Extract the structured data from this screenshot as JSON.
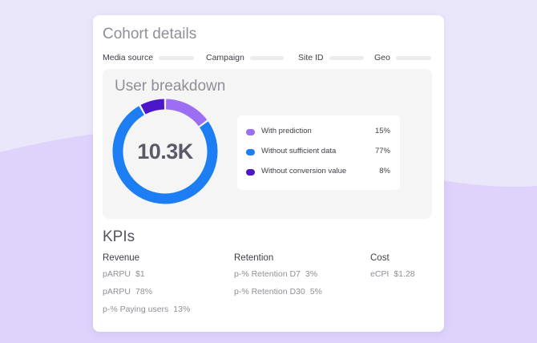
{
  "colors": {
    "prediction": "#9b6ef3",
    "insufficient": "#1c7ef2",
    "conversion": "#4c16c9",
    "wave": "#ddd3fb"
  },
  "card": {
    "title": "Cohort details",
    "filters": [
      {
        "label": "Media source"
      },
      {
        "label": "Campaign"
      },
      {
        "label": "Site ID"
      },
      {
        "label": "Geo"
      }
    ]
  },
  "breakdown": {
    "title": "User breakdown",
    "total": "10.3K",
    "items": [
      {
        "label": "With prediction",
        "value": "15%",
        "fraction": 0.15,
        "color": "#9b6ef3"
      },
      {
        "label": "Without sufficient data",
        "value": "77%",
        "fraction": 0.77,
        "color": "#1c7ef2"
      },
      {
        "label": "Without conversion value",
        "value": "8%",
        "fraction": 0.08,
        "color": "#4c16c9"
      }
    ]
  },
  "kpis": {
    "title": "KPIs",
    "columns": [
      {
        "heading": "Revenue",
        "items": [
          {
            "label": "pARPU",
            "value": "$1"
          },
          {
            "label": "pARPU",
            "value": "78%"
          },
          {
            "label": "p-% Paying users",
            "value": "13%"
          }
        ]
      },
      {
        "heading": "Retention",
        "items": [
          {
            "label": "p-% Retention D7",
            "value": "3%"
          },
          {
            "label": "p-% Retention D30",
            "value": "5%"
          }
        ]
      },
      {
        "heading": "Cost",
        "items": [
          {
            "label": "eCPI",
            "value": "$1.28"
          }
        ]
      }
    ]
  }
}
